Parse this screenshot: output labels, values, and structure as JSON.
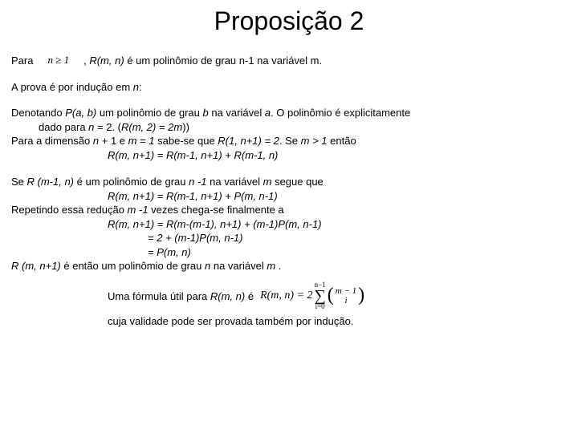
{
  "title": "Proposição 2",
  "line1": {
    "para": "Para",
    "formula_lhs": "n",
    "formula_op": "≥",
    "formula_rhs": "1",
    "rest_prefix": ", ",
    "rest_R": "R(m, n)",
    "rest_suffix": "  é um polinômio de grau n-1 na variável m."
  },
  "section": {
    "prefix": "A prova é por indução em ",
    "var": "n",
    "suffix": ":"
  },
  "block1": {
    "l1_a": "Denotando ",
    "l1_b": "P(a, b)",
    "l1_c": " um polinômio de grau ",
    "l1_d": "b",
    "l1_e": " na variável ",
    "l1_f": "a",
    "l1_g": ". O polinômio é explicitamente",
    "l2_a": "dado para ",
    "l2_b": "n",
    "l2_c": " = 2.  (",
    "l2_d": "R(m, 2) = 2m",
    "l2_e": "))",
    "l3_a": "Para a dimensão ",
    "l3_b": "n",
    "l3_c": " + 1 e ",
    "l3_d": "m = 1",
    "l3_e": " sabe-se que ",
    "l3_f": "R(1, n+1) = 2",
    "l3_g": ". Se ",
    "l3_h": "m > 1",
    "l3_i": " então",
    "l4": "R(m, n+1) = R(m-1, n+1) + R(m-1, n)"
  },
  "block2": {
    "l1_a": "Se ",
    "l1_b": "R (m-1, n)",
    "l1_c": " é um polinômio de grau ",
    "l1_d": "n -1",
    "l1_e": " na variável ",
    "l1_f": "m",
    "l1_g": " segue que",
    "l2": "R(m, n+1) = R(m-1, n+1) + P(m, n-1)",
    "l3_a": "Repetindo essa redução ",
    "l3_b": "m -1",
    "l3_c": " vezes chega-se finalmente a",
    "l4": "R(m, n+1) = R(m-(m-1), n+1)  + (m-1)P(m, n-1)",
    "l5": "= 2 + (m-1)P(m, n-1)",
    "l6": "= P(m, n)",
    "l7_a": "R (m, n+1)",
    "l7_b": " é então um polinômio de grau ",
    "l7_c": "n",
    "l7_d": " na variável ",
    "l7_e": "m ",
    "l7_f": "."
  },
  "formula": {
    "label": "Uma fórmula útil para ",
    "label_R": "R(m, n)",
    "label_suffix": " é",
    "Rmn": "R(m, n) = 2",
    "sum_top": "n−1",
    "sum_bot": "i=0",
    "binom_top": "m − 1",
    "binom_bot": "i"
  },
  "closing": "cuja validade pode ser provada também por indução.",
  "colors": {
    "text": "#000000",
    "background": "#ffffff"
  },
  "typography": {
    "title_fontsize": 32,
    "body_fontsize": 13,
    "body_family": "Arial",
    "formula_family": "Times New Roman"
  }
}
